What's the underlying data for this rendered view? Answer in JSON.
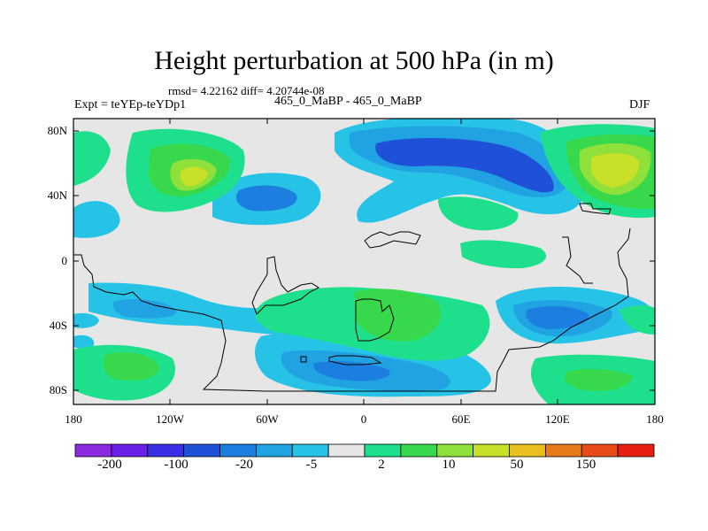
{
  "title": "Height perturbation at 500 hPa (in m)",
  "subtitle": "rmsd= 4.22162 diff= 4.20744e-08",
  "experiment": "Expt = teYEp-teYDp1",
  "comparison": "465_0_MaBP - 465_0_MaBP",
  "season": "DJF",
  "lat_ticks": [
    "80N",
    "40N",
    "0",
    "40S",
    "80S"
  ],
  "lon_ticks": [
    "180",
    "120W",
    "60W",
    "0",
    "60E",
    "120E",
    "180"
  ],
  "colorbar": {
    "labels": [
      "-200",
      "-100",
      "-20",
      "-5",
      "2",
      "10",
      "50",
      "150"
    ],
    "colors": [
      "#8a2be2",
      "#6a20e8",
      "#3a2ee6",
      "#1e50d8",
      "#1c7fe0",
      "#21a3e3",
      "#27c3e6",
      "#e6e6e6",
      "#1ee08c",
      "#37d84c",
      "#8fe03a",
      "#c8e028",
      "#e8c020",
      "#e87a1e",
      "#e84a1a",
      "#e81e10"
    ]
  },
  "chart_data": {
    "type": "filled-contour-map",
    "title": "Height perturbation at 500 hPa (in m)",
    "variable": "500 hPa geopotential height perturbation",
    "units": "m",
    "lon_range": [
      -180,
      180
    ],
    "lat_range": [
      -90,
      90
    ],
    "contour_levels": [
      -200,
      -100,
      -50,
      -20,
      -10,
      -5,
      -2,
      2,
      5,
      10,
      20,
      50,
      100,
      150,
      200
    ],
    "features": [
      {
        "kind": "low",
        "lon": 20,
        "lat": 70,
        "value": -20
      },
      {
        "kind": "low",
        "lon": 122,
        "lat": -40,
        "value": -20
      },
      {
        "kind": "low",
        "lon": -20,
        "lat": -70,
        "value": -20
      },
      {
        "kind": "low",
        "lon": -80,
        "lat": 40,
        "value": -20
      },
      {
        "kind": "high",
        "lon": -130,
        "lat": 60,
        "value": 10
      },
      {
        "kind": "high",
        "lon": 150,
        "lat": 60,
        "value": 10
      },
      {
        "kind": "high",
        "lon": 10,
        "lat": -32,
        "value": 10
      },
      {
        "kind": "high",
        "lon": 155,
        "lat": -78,
        "value": 5
      },
      {
        "kind": "high",
        "lon": -155,
        "lat": -78,
        "value": 5
      }
    ]
  }
}
